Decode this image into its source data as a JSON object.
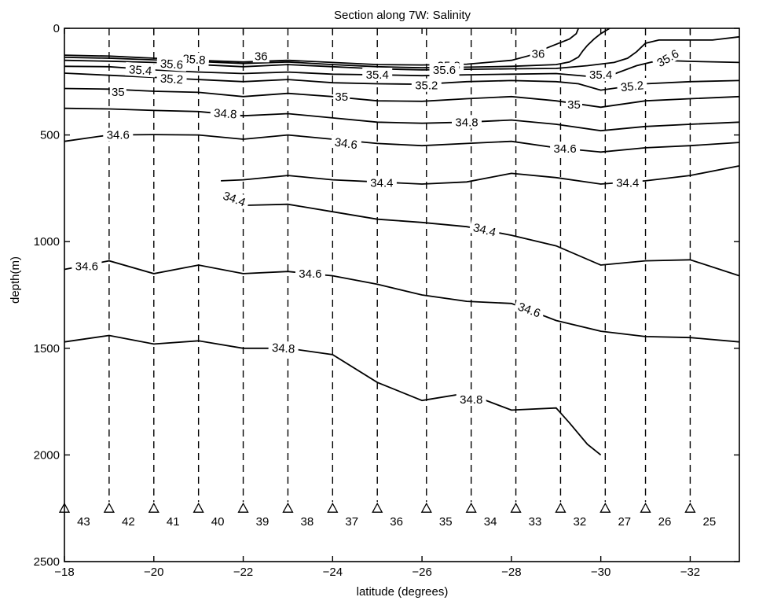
{
  "chart_data": {
    "type": "contour",
    "title": "Section along 7W: Salinity",
    "xlabel": "latitude (degrees)",
    "ylabel": "depth(m)",
    "xlim": [
      -18,
      -33.1
    ],
    "ylim": [
      2500,
      0
    ],
    "x_ticks": [
      -18,
      -20,
      -22,
      -24,
      -26,
      -28,
      -30,
      -32
    ],
    "x_tick_labels": [
      "−18",
      "−20",
      "−22",
      "−24",
      "−26",
      "−28",
      "−30",
      "−32"
    ],
    "y_ticks": [
      0,
      500,
      1000,
      1500,
      2000,
      2500
    ],
    "y_tick_labels": [
      "0",
      "500",
      "1000",
      "1500",
      "2000",
      "2500"
    ],
    "grid": false,
    "stations": [
      {
        "number": "43",
        "lat": -18.0
      },
      {
        "number": "42",
        "lat": -19.0
      },
      {
        "number": "41",
        "lat": -20.0
      },
      {
        "number": "40",
        "lat": -21.0
      },
      {
        "number": "39",
        "lat": -22.0
      },
      {
        "number": "38",
        "lat": -23.0
      },
      {
        "number": "37",
        "lat": -24.0
      },
      {
        "number": "36",
        "lat": -25.0
      },
      {
        "number": "35",
        "lat": -26.1
      },
      {
        "number": "34",
        "lat": -27.1
      },
      {
        "number": "33",
        "lat": -28.1
      },
      {
        "number": "32",
        "lat": -29.1
      },
      {
        "number": "27",
        "lat": -30.1
      },
      {
        "number": "26",
        "lat": -31.0
      },
      {
        "number": "25",
        "lat": -32.0
      }
    ],
    "station_marker_depth": 2250,
    "station_line_bottom_depth": 2220,
    "contours": [
      {
        "level": "36",
        "points": [
          [
            -18,
            126
          ],
          [
            -19,
            130
          ],
          [
            -20,
            140
          ],
          [
            -21,
            150
          ],
          [
            -22,
            158
          ],
          [
            -23,
            150
          ],
          [
            -24,
            160
          ],
          [
            -25,
            170
          ],
          [
            -26,
            172
          ],
          [
            -27,
            168
          ],
          [
            -28,
            150
          ],
          [
            -28.4,
            128
          ],
          [
            -28.7,
            100
          ],
          [
            -29.0,
            75
          ],
          [
            -29.3,
            50
          ],
          [
            -29.45,
            25
          ],
          [
            -29.5,
            0
          ]
        ]
      },
      {
        "level": "35.8",
        "points": [
          [
            -18,
            136
          ],
          [
            -19,
            140
          ],
          [
            -20,
            148
          ],
          [
            -21,
            156
          ],
          [
            -22,
            165
          ],
          [
            -23,
            158
          ],
          [
            -24,
            170
          ],
          [
            -25,
            180
          ],
          [
            -26,
            185
          ],
          [
            -27,
            182
          ],
          [
            -28,
            178
          ],
          [
            -29,
            170
          ],
          [
            -29.3,
            158
          ],
          [
            -29.5,
            135
          ],
          [
            -29.6,
            105
          ],
          [
            -29.7,
            80
          ],
          [
            -29.85,
            50
          ],
          [
            -30.0,
            25
          ],
          [
            -30.2,
            0
          ]
        ]
      },
      {
        "level": "35.6",
        "points": [
          [
            -18,
            150
          ],
          [
            -19,
            154
          ],
          [
            -20,
            160
          ],
          [
            -21,
            170
          ],
          [
            -22,
            180
          ],
          [
            -23,
            170
          ],
          [
            -24,
            180
          ],
          [
            -25,
            190
          ],
          [
            -26,
            195
          ],
          [
            -27,
            192
          ],
          [
            -28,
            190
          ],
          [
            -29,
            188
          ],
          [
            -29.7,
            175
          ],
          [
            -30.3,
            160
          ],
          [
            -30.6,
            140
          ],
          [
            -30.8,
            110
          ],
          [
            -31.0,
            70
          ],
          [
            -31.3,
            55
          ],
          [
            -32.5,
            55
          ],
          [
            -33.1,
            40
          ]
        ]
      },
      {
        "level": "35.4",
        "points": [
          [
            -18,
            178
          ],
          [
            -19,
            180
          ],
          [
            -20,
            195
          ],
          [
            -21,
            205
          ],
          [
            -22,
            212
          ],
          [
            -23,
            205
          ],
          [
            -24,
            215
          ],
          [
            -25,
            218
          ],
          [
            -26,
            222
          ],
          [
            -27,
            218
          ],
          [
            -28,
            215
          ],
          [
            -29,
            212
          ],
          [
            -29.7,
            225
          ],
          [
            -30.2,
            222
          ],
          [
            -30.8,
            175
          ],
          [
            -31.3,
            150
          ],
          [
            -32,
            155
          ],
          [
            -33.1,
            160
          ]
        ]
      },
      {
        "level": "35.2",
        "points": [
          [
            -18,
            210
          ],
          [
            -19,
            220
          ],
          [
            -20,
            230
          ],
          [
            -21,
            240
          ],
          [
            -22,
            250
          ],
          [
            -23,
            240
          ],
          [
            -24,
            255
          ],
          [
            -25,
            260
          ],
          [
            -26,
            262
          ],
          [
            -27,
            250
          ],
          [
            -28,
            245
          ],
          [
            -29,
            250
          ],
          [
            -29.5,
            260
          ],
          [
            -30,
            290
          ],
          [
            -30.5,
            275
          ],
          [
            -31,
            260
          ],
          [
            -32,
            250
          ],
          [
            -33.1,
            245
          ]
        ]
      },
      {
        "level": "35",
        "points": [
          [
            -18,
            282
          ],
          [
            -19,
            285
          ],
          [
            -20,
            295
          ],
          [
            -21,
            300
          ],
          [
            -22,
            320
          ],
          [
            -23,
            305
          ],
          [
            -24,
            320
          ],
          [
            -25,
            340
          ],
          [
            -26,
            342
          ],
          [
            -27,
            330
          ],
          [
            -28,
            320
          ],
          [
            -29,
            340
          ],
          [
            -30,
            370
          ],
          [
            -31,
            340
          ],
          [
            -32,
            330
          ],
          [
            -33.1,
            320
          ]
        ]
      },
      {
        "level": "34.8",
        "points": [
          [
            -18,
            375
          ],
          [
            -19,
            378
          ],
          [
            -20,
            385
          ],
          [
            -21,
            390
          ],
          [
            -22,
            410
          ],
          [
            -23,
            400
          ],
          [
            -24,
            420
          ],
          [
            -25,
            440
          ],
          [
            -26,
            445
          ],
          [
            -27,
            440
          ],
          [
            -28,
            430
          ],
          [
            -29,
            450
          ],
          [
            -30,
            480
          ],
          [
            -31,
            460
          ],
          [
            -32,
            450
          ],
          [
            -33.1,
            440
          ]
        ]
      },
      {
        "level": "34.6",
        "points": [
          [
            -18,
            530
          ],
          [
            -19,
            500
          ],
          [
            -20,
            498
          ],
          [
            -21,
            500
          ],
          [
            -22,
            520
          ],
          [
            -23,
            500
          ],
          [
            -24,
            520
          ],
          [
            -25,
            540
          ],
          [
            -26,
            550
          ],
          [
            -27,
            540
          ],
          [
            -28,
            530
          ],
          [
            -29,
            560
          ],
          [
            -30,
            580
          ],
          [
            -31,
            560
          ],
          [
            -32,
            550
          ],
          [
            -33.1,
            535
          ]
        ]
      },
      {
        "level": "34.4",
        "points": [
          [
            -21.5,
            715
          ],
          [
            -22,
            710
          ],
          [
            -23,
            690
          ],
          [
            -24,
            710
          ],
          [
            -25,
            720
          ],
          [
            -26,
            730
          ],
          [
            -27,
            720
          ],
          [
            -28,
            680
          ],
          [
            -29,
            700
          ],
          [
            -30,
            730
          ],
          [
            -31,
            715
          ],
          [
            -32,
            690
          ],
          [
            -33.1,
            645
          ]
        ]
      },
      {
        "level": "34.4",
        "points": [
          [
            -21.6,
            785
          ],
          [
            -22,
            830
          ],
          [
            -23,
            825
          ],
          [
            -24,
            860
          ],
          [
            -25,
            895
          ],
          [
            -26,
            910
          ],
          [
            -27,
            930
          ],
          [
            -28,
            970
          ],
          [
            -29,
            1020
          ],
          [
            -30,
            1110
          ],
          [
            -31,
            1090
          ],
          [
            -32,
            1085
          ],
          [
            -33.1,
            1160
          ]
        ]
      },
      {
        "level": "34.6",
        "points": [
          [
            -18,
            1130
          ],
          [
            -19,
            1090
          ],
          [
            -20,
            1150
          ],
          [
            -21,
            1110
          ],
          [
            -22,
            1150
          ],
          [
            -23,
            1140
          ],
          [
            -24,
            1160
          ],
          [
            -25,
            1200
          ],
          [
            -26,
            1250
          ],
          [
            -27,
            1280
          ],
          [
            -28,
            1290
          ],
          [
            -29,
            1370
          ],
          [
            -30,
            1420
          ],
          [
            -31,
            1445
          ],
          [
            -32,
            1450
          ],
          [
            -33.1,
            1470
          ]
        ]
      },
      {
        "level": "34.8",
        "points": [
          [
            -18,
            1470
          ],
          [
            -19,
            1440
          ],
          [
            -20,
            1480
          ],
          [
            -21,
            1465
          ],
          [
            -22,
            1500
          ],
          [
            -23,
            1500
          ],
          [
            -24,
            1530
          ],
          [
            -25,
            1660
          ],
          [
            -26,
            1745
          ],
          [
            -27,
            1710
          ],
          [
            -28,
            1790
          ],
          [
            -29,
            1780
          ],
          [
            -29.3,
            1850
          ],
          [
            -29.7,
            1950
          ],
          [
            -30,
            2000
          ]
        ]
      }
    ],
    "contour_labels": [
      {
        "text": "36",
        "lat": -22.4,
        "depth": 130,
        "rotate": 0
      },
      {
        "text": "36",
        "lat": -28.6,
        "depth": 120,
        "rotate": 0
      },
      {
        "text": "35.8",
        "lat": -20.9,
        "depth": 146,
        "rotate": 4
      },
      {
        "text": "35.8",
        "lat": -26.6,
        "depth": 176,
        "rotate": 0
      },
      {
        "text": "35.6",
        "lat": -20.4,
        "depth": 168,
        "rotate": 4
      },
      {
        "text": "35.6",
        "lat": -26.5,
        "depth": 196,
        "rotate": 0
      },
      {
        "text": "35.6",
        "lat": -31.5,
        "depth": 140,
        "rotate": -30
      },
      {
        "text": "35.4",
        "lat": -19.7,
        "depth": 196,
        "rotate": 4
      },
      {
        "text": "35.4",
        "lat": -25.0,
        "depth": 218,
        "rotate": 0
      },
      {
        "text": "35.4",
        "lat": -30.0,
        "depth": 218,
        "rotate": 0
      },
      {
        "text": "35.2",
        "lat": -20.4,
        "depth": 238,
        "rotate": 4
      },
      {
        "text": "35.2",
        "lat": -26.1,
        "depth": 268,
        "rotate": 0
      },
      {
        "text": "35.2",
        "lat": -30.7,
        "depth": 272,
        "rotate": -6
      },
      {
        "text": "35",
        "lat": -19.2,
        "depth": 298,
        "rotate": 0
      },
      {
        "text": "35",
        "lat": -24.2,
        "depth": 320,
        "rotate": 0
      },
      {
        "text": "35",
        "lat": -29.4,
        "depth": 358,
        "rotate": 0
      },
      {
        "text": "34.8",
        "lat": -21.6,
        "depth": 400,
        "rotate": 4
      },
      {
        "text": "34.8",
        "lat": -27.0,
        "depth": 440,
        "rotate": 0
      },
      {
        "text": "34.6",
        "lat": -19.2,
        "depth": 500,
        "rotate": 0
      },
      {
        "text": "34.6",
        "lat": -24.3,
        "depth": 540,
        "rotate": 8
      },
      {
        "text": "34.6",
        "lat": -29.2,
        "depth": 565,
        "rotate": 0
      },
      {
        "text": "34.4",
        "lat": -25.1,
        "depth": 725,
        "rotate": 0
      },
      {
        "text": "34.4",
        "lat": -30.6,
        "depth": 725,
        "rotate": 0
      },
      {
        "text": "34.4",
        "lat": -21.8,
        "depth": 800,
        "rotate": 20
      },
      {
        "text": "34.4",
        "lat": -27.4,
        "depth": 945,
        "rotate": 14
      },
      {
        "text": "34.6",
        "lat": -18.5,
        "depth": 1115,
        "rotate": 0
      },
      {
        "text": "34.6",
        "lat": -23.5,
        "depth": 1150,
        "rotate": 0
      },
      {
        "text": "34.6",
        "lat": -28.4,
        "depth": 1320,
        "rotate": 20
      },
      {
        "text": "34.8",
        "lat": -22.9,
        "depth": 1500,
        "rotate": 4
      },
      {
        "text": "34.8",
        "lat": -27.1,
        "depth": 1740,
        "rotate": 0
      }
    ]
  }
}
